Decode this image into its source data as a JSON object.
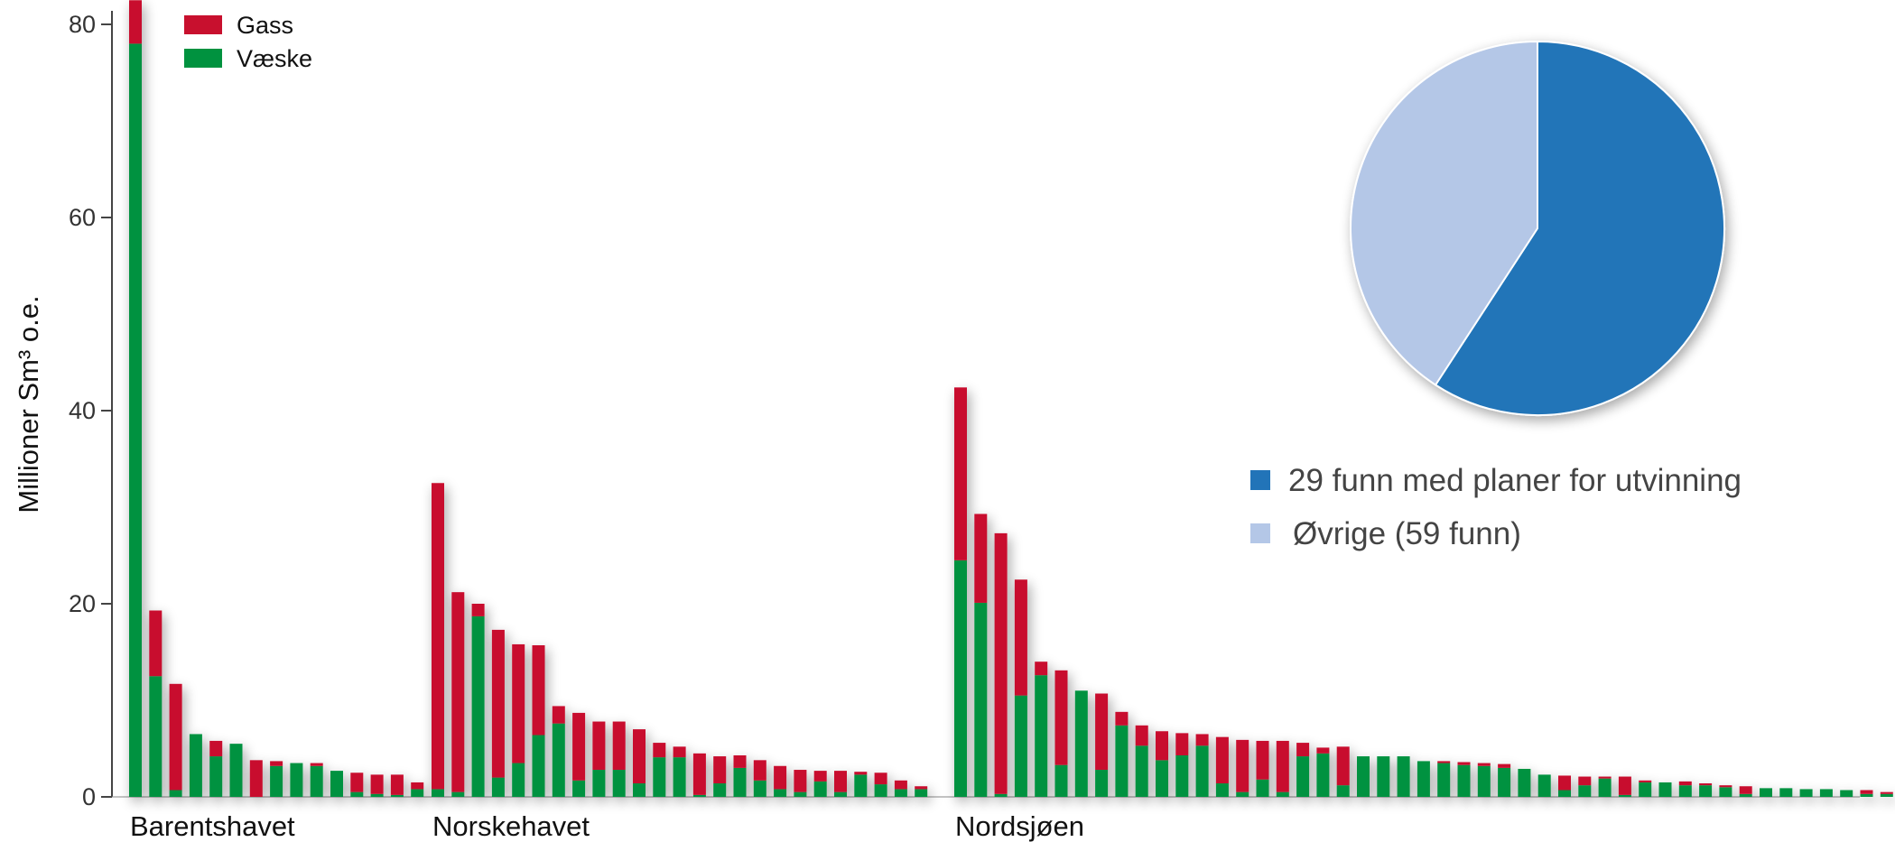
{
  "chart_data": [
    {
      "type": "bar",
      "stacked": true,
      "ylabel": "Millioner Sm³ o.e.",
      "ylim": [
        0,
        82
      ],
      "yticks": [
        0,
        20,
        40,
        60,
        80
      ],
      "grid": false,
      "legend_position": "top-left",
      "colors": {
        "Væske": "#00923f",
        "Gass": "#c8102e"
      },
      "legend": [
        "Gass",
        "Væske"
      ],
      "regions": [
        {
          "name": "Barentshavet",
          "vaeske": [
            78,
            12.5,
            0.7,
            6.5,
            4.2,
            5.5,
            0,
            3.2,
            3.5,
            3.2,
            2.7,
            0.5,
            0.3,
            0.2,
            0.8
          ],
          "gass": [
            4.5,
            6.8,
            11,
            0,
            1.6,
            0,
            3.8,
            0.5,
            0,
            0.3,
            0,
            2.0,
            2.0,
            2.1,
            0.7
          ]
        },
        {
          "name": "Norskehavet",
          "vaeske": [
            0.8,
            0.5,
            18.7,
            2.0,
            3.5,
            6.4,
            7.6,
            1.7,
            2.8,
            2.8,
            1.4,
            4.1,
            4.1,
            0.2,
            1.4,
            3.0,
            1.7,
            0.8,
            0.5,
            1.6,
            0.5,
            2.3,
            1.3,
            0.8,
            0.8
          ],
          "gass": [
            31.7,
            20.7,
            1.3,
            15.3,
            12.3,
            9.3,
            1.8,
            7.0,
            5.0,
            5.0,
            5.6,
            1.5,
            1.1,
            4.3,
            2.8,
            1.3,
            2.1,
            2.4,
            2.3,
            1.1,
            2.2,
            0.3,
            1.2,
            0.9,
            0.3
          ]
        },
        {
          "name": "Nordsjøen",
          "vaeske": [
            24.5,
            20.1,
            0.3,
            10.5,
            12.6,
            3.3,
            11.0,
            2.8,
            7.4,
            5.3,
            3.8,
            4.3,
            5.3,
            1.4,
            0.5,
            1.8,
            0.5,
            4.2,
            4.5,
            1.2,
            4.2,
            4.2,
            4.2,
            3.7,
            3.5,
            3.3,
            3.2,
            3.0,
            2.9,
            2.3,
            0.7,
            1.2,
            1.9,
            0.2,
            1.5,
            1.5,
            1.2,
            1.2,
            1.0,
            0.3,
            0.9,
            0.9,
            0.8,
            0.8,
            0.7,
            0.3,
            0.3
          ],
          "gass": [
            17.9,
            9.2,
            27.0,
            12.0,
            1.4,
            9.8,
            0,
            7.9,
            1.4,
            2.1,
            3.0,
            2.3,
            1.2,
            4.8,
            5.4,
            4.0,
            5.3,
            1.4,
            0.6,
            4.0,
            0,
            0,
            0,
            0,
            0.2,
            0.3,
            0.3,
            0.4,
            0,
            0,
            1.5,
            0.9,
            0.2,
            1.9,
            0.2,
            0,
            0.4,
            0.2,
            0.2,
            0.8,
            0,
            0,
            0,
            0,
            0,
            0.4,
            0.2
          ]
        }
      ]
    },
    {
      "type": "pie",
      "series": [
        {
          "label": "29 funn med planer for utvinning",
          "value": 29,
          "color": "#2274b8"
        },
        {
          "label": "Øvrige (59 funn)",
          "value": 20,
          "color": "#b4c7e7"
        }
      ],
      "legend_position": "bottom"
    }
  ]
}
